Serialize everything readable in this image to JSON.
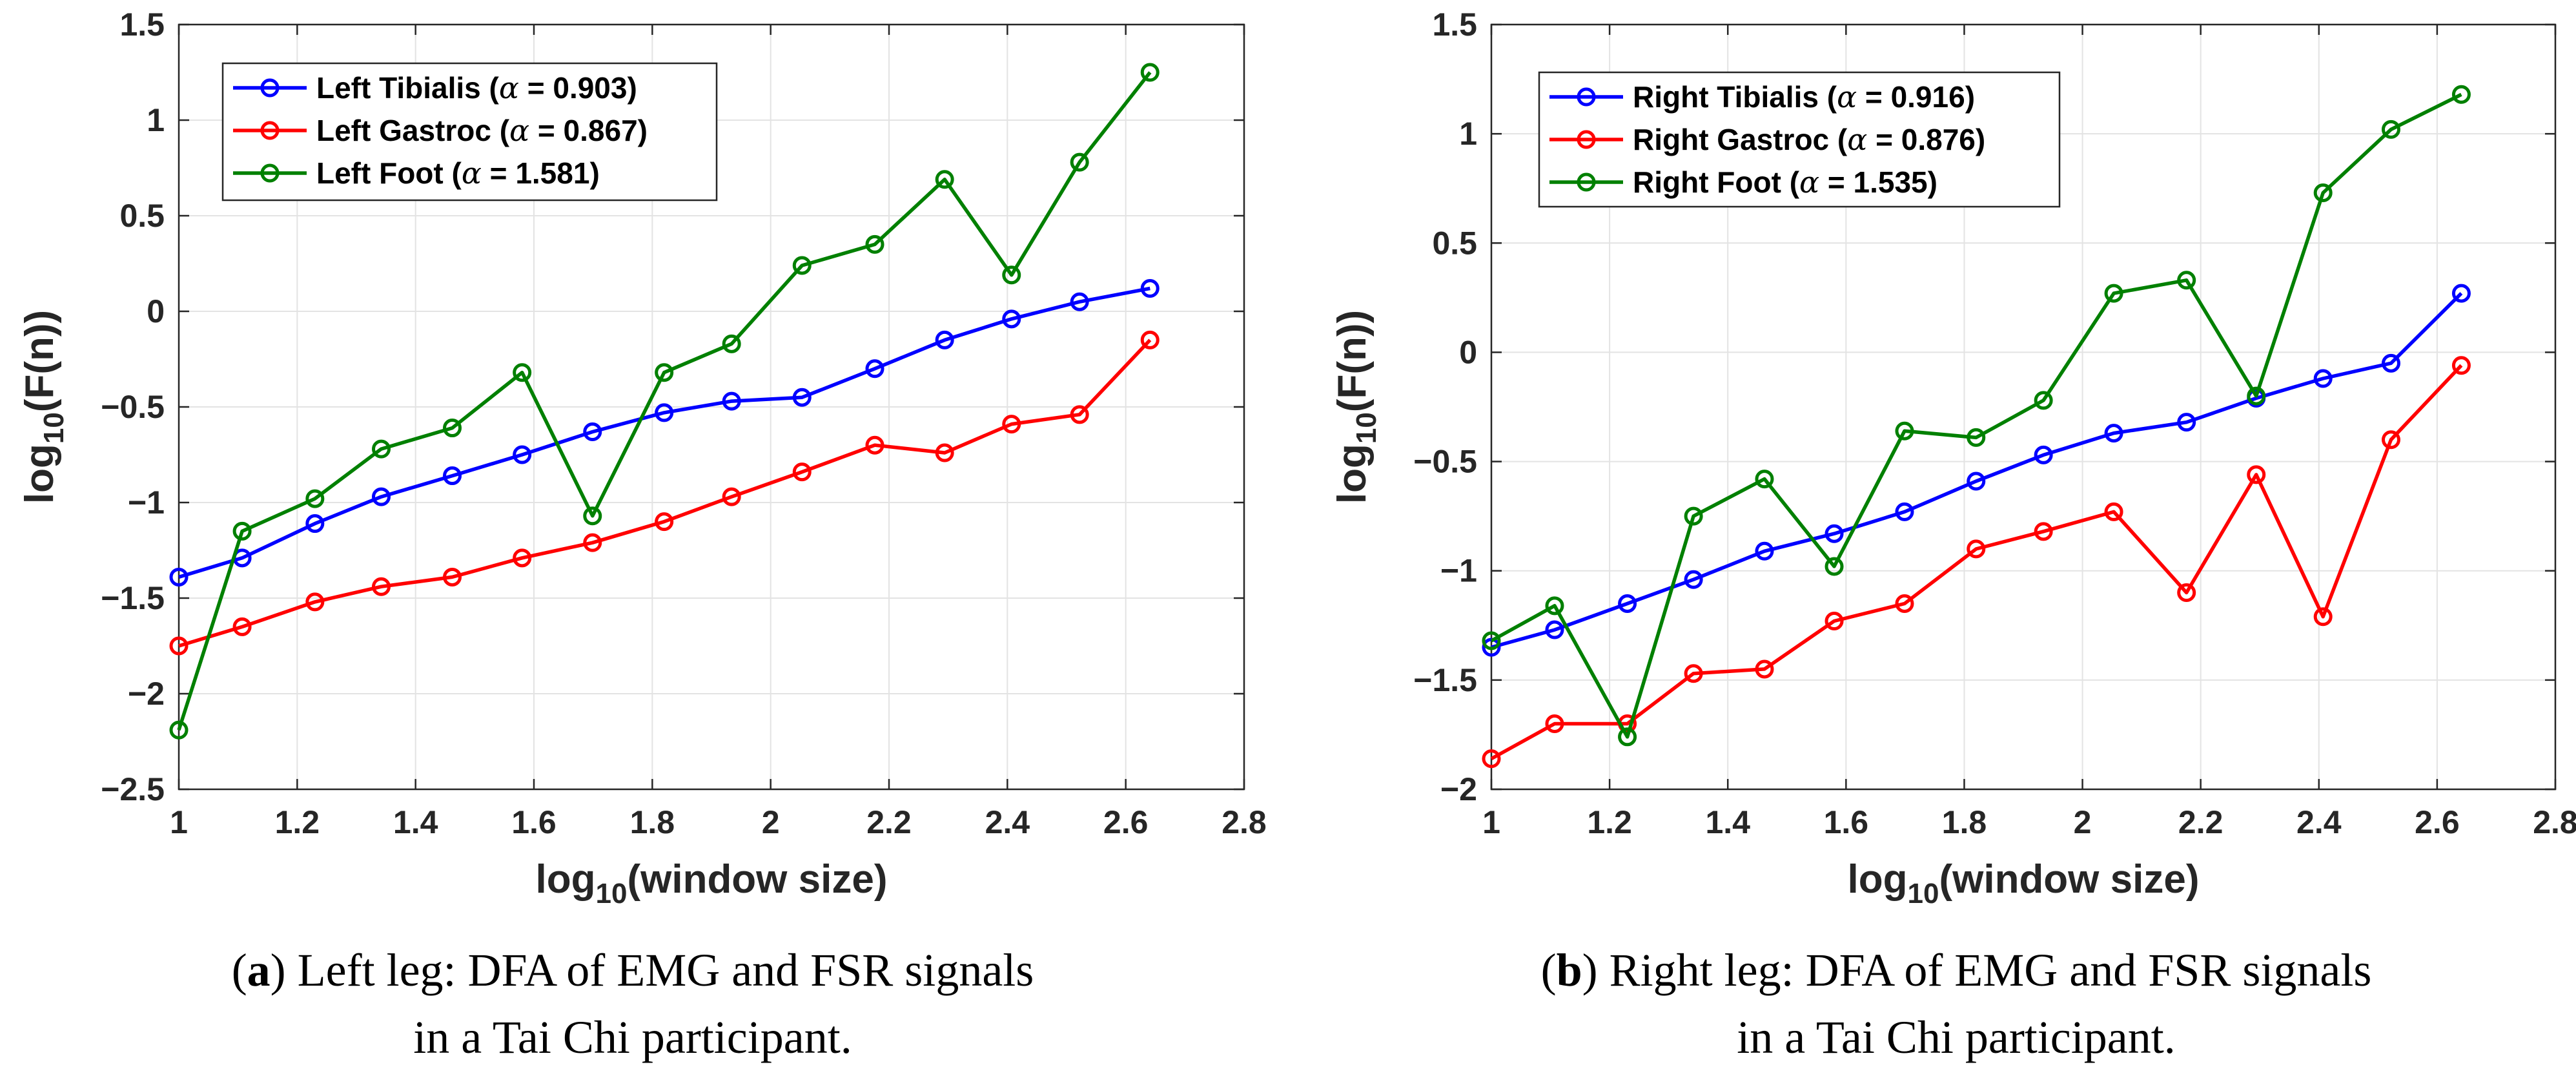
{
  "chart_data": [
    {
      "type": "line",
      "title": "",
      "xlabel": "log10(window size)",
      "xlabel_base": "log",
      "xlabel_sub": "10",
      "xlabel_rest": "(window size)",
      "ylabel": "log10(F(n))",
      "ylabel_base": "log",
      "ylabel_sub": "10",
      "ylabel_rest": "(F(n))",
      "xlim": [
        1,
        2.8
      ],
      "ylim": [
        -2.5,
        1.5
      ],
      "xticks": [
        1,
        1.2,
        1.4,
        1.6,
        1.8,
        2,
        2.2,
        2.4,
        2.6,
        2.8
      ],
      "xtick_labels": [
        "1",
        "1.2",
        "1.4",
        "1.6",
        "1.8",
        "2",
        "2.2",
        "2.4",
        "2.6",
        "2.8"
      ],
      "yticks": [
        -2.5,
        -2,
        -1.5,
        -1,
        -0.5,
        0,
        0.5,
        1,
        1.5
      ],
      "ytick_labels": [
        "−2.5",
        "−2",
        "−1.5",
        "−1",
        "−0.5",
        "0",
        "0.5",
        "1",
        "1.5"
      ],
      "grid": true,
      "legend_position": "top-left",
      "x": [
        1.0,
        1.107,
        1.23,
        1.342,
        1.462,
        1.58,
        1.699,
        1.82,
        1.934,
        2.053,
        2.176,
        2.294,
        2.407,
        2.522,
        2.641
      ],
      "series": [
        {
          "name": "Left Tibialis",
          "alpha_text": "α = 0.903",
          "label_name": "Left Tibialis (",
          "label_close": ")",
          "color": "#0000ff",
          "values": [
            -1.39,
            -1.29,
            -1.11,
            -0.97,
            -0.86,
            -0.75,
            -0.63,
            -0.53,
            -0.47,
            -0.45,
            -0.3,
            -0.15,
            -0.04,
            0.05,
            0.12
          ]
        },
        {
          "name": "Left Gastroc",
          "alpha_text": "α = 0.867",
          "label_name": "Left Gastroc (",
          "label_close": ")",
          "color": "#ff0000",
          "values": [
            -1.75,
            -1.65,
            -1.52,
            -1.44,
            -1.39,
            -1.29,
            -1.21,
            -1.1,
            -0.97,
            -0.84,
            -0.7,
            -0.74,
            -0.59,
            -0.54,
            -0.15
          ]
        },
        {
          "name": "Left Foot",
          "alpha_text": "α = 1.581",
          "label_name": "Left Foot (",
          "label_close": ")",
          "color": "#008000",
          "values": [
            -2.19,
            -1.15,
            -0.98,
            -0.72,
            -0.61,
            -0.32,
            -1.07,
            -0.32,
            -0.17,
            0.24,
            0.35,
            0.69,
            0.19,
            0.78,
            1.25
          ]
        }
      ]
    },
    {
      "type": "line",
      "title": "",
      "xlabel": "log10(window size)",
      "xlabel_base": "log",
      "xlabel_sub": "10",
      "xlabel_rest": "(window size)",
      "ylabel": "log10(F(n))",
      "ylabel_base": "log",
      "ylabel_sub": "10",
      "ylabel_rest": "(F(n))",
      "xlim": [
        1,
        2.8
      ],
      "ylim": [
        -2,
        1.5
      ],
      "xticks": [
        1,
        1.2,
        1.4,
        1.6,
        1.8,
        2,
        2.2,
        2.4,
        2.6,
        2.8
      ],
      "xtick_labels": [
        "1",
        "1.2",
        "1.4",
        "1.6",
        "1.8",
        "2",
        "2.2",
        "2.4",
        "2.6",
        "2.8"
      ],
      "yticks": [
        -2,
        -1.5,
        -1,
        -0.5,
        0,
        0.5,
        1,
        1.5
      ],
      "ytick_labels": [
        "−2",
        "−1.5",
        "−1",
        "−0.5",
        "0",
        "0.5",
        "1",
        "1.5"
      ],
      "grid": true,
      "legend_position": "top-left",
      "x": [
        1.0,
        1.107,
        1.23,
        1.342,
        1.462,
        1.58,
        1.699,
        1.82,
        1.934,
        2.053,
        2.176,
        2.294,
        2.407,
        2.522,
        2.641
      ],
      "series": [
        {
          "name": "Right Tibialis",
          "alpha_text": "α = 0.916",
          "label_name": "Right Tibialis (",
          "label_close": ")",
          "color": "#0000ff",
          "values": [
            -1.35,
            -1.27,
            -1.15,
            -1.04,
            -0.91,
            -0.83,
            -0.73,
            -0.59,
            -0.47,
            -0.37,
            -0.32,
            -0.21,
            -0.12,
            -0.05,
            0.27
          ]
        },
        {
          "name": "Right Gastroc",
          "alpha_text": "α = 0.876",
          "label_name": "Right Gastroc (",
          "label_close": ")",
          "color": "#ff0000",
          "values": [
            -1.86,
            -1.7,
            -1.7,
            -1.47,
            -1.45,
            -1.23,
            -1.15,
            -0.9,
            -0.82,
            -0.73,
            -1.1,
            -0.56,
            -1.21,
            -0.4,
            -0.06
          ]
        },
        {
          "name": "Right Foot",
          "alpha_text": "α = 1.535",
          "label_name": "Right Foot (",
          "label_close": ")",
          "color": "#008000",
          "values": [
            -1.32,
            -1.16,
            -1.76,
            -0.75,
            -0.58,
            -0.98,
            -0.36,
            -0.39,
            -0.22,
            0.27,
            0.33,
            -0.2,
            0.73,
            1.02,
            1.18
          ]
        }
      ]
    }
  ],
  "captions": [
    {
      "tag": "(a)",
      "letter": "a",
      "line1_rest": ") Left leg: DFA of EMG and FSR signals",
      "line2": "in a Tai Chi participant."
    },
    {
      "tag": "(b)",
      "letter": "b",
      "line1_rest": ") Right leg: DFA of EMG and FSR signals",
      "line2": "in a Tai Chi participant."
    }
  ]
}
